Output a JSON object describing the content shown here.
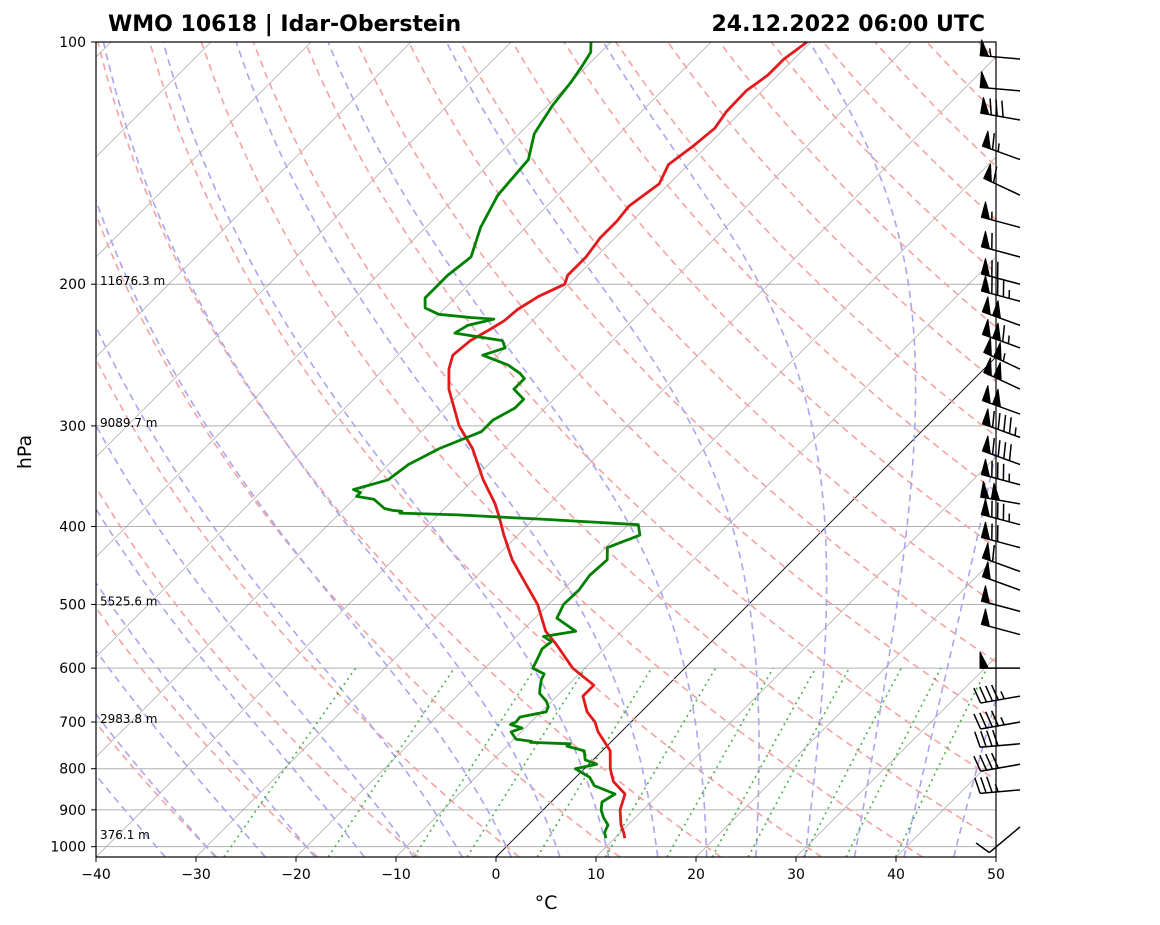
{
  "header": {
    "station": "WMO 10618 | Idar-Oberstein",
    "datetime": "24.12.2022 06:00 UTC"
  },
  "chart_data": {
    "type": "line",
    "title": "WMO 10618 | Idar-Oberstein",
    "subtitle": "24.12.2022 06:00 UTC",
    "xlabel": "°C",
    "ylabel": "hPa",
    "xlim": [
      -40,
      50
    ],
    "ylim": [
      1030,
      100
    ],
    "y_scale": "log",
    "skew": "skew-T log-p",
    "grid": true,
    "x_ticks": [
      "−40",
      "−30",
      "−20",
      "−10",
      "0",
      "10",
      "20",
      "30",
      "40",
      "50"
    ],
    "x_tick_values": [
      -40,
      -30,
      -20,
      -10,
      0,
      10,
      20,
      30,
      40,
      50
    ],
    "y_ticks": [
      "100",
      "200",
      "300",
      "400",
      "500",
      "600",
      "700",
      "800",
      "900",
      "1000"
    ],
    "y_tick_values": [
      100,
      200,
      300,
      400,
      500,
      600,
      700,
      800,
      900,
      1000
    ],
    "height_labels": [
      {
        "p": 200,
        "text": "11676.3 m"
      },
      {
        "p": 300,
        "text": "9089.7 m"
      },
      {
        "p": 500,
        "text": "5525.6 m"
      },
      {
        "p": 700,
        "text": "2983.8 m"
      },
      {
        "p": 976,
        "text": "376.1 m"
      }
    ],
    "colors": {
      "temperature": "#e31a1c",
      "dewpoint": "#008000",
      "dry_adiabat": "#f4a3a3",
      "moist_adiabat": "#a7a7ee",
      "mixing_ratio": "#4caf50",
      "isotherm": "#888888"
    },
    "series": [
      {
        "name": "temperature",
        "p": [
          976,
          960,
          940,
          900,
          860,
          830,
          800,
          760,
          720,
          700,
          680,
          650,
          630,
          600,
          560,
          540,
          500,
          470,
          440,
          410,
          390,
          375,
          365,
          350,
          320,
          300,
          270,
          255,
          245,
          235,
          228,
          222,
          215,
          207,
          200,
          195,
          185,
          175,
          167,
          160,
          150,
          142,
          135,
          128,
          122,
          115,
          110,
          105,
          100
        ],
        "t": [
          11.0,
          10.3,
          9.3,
          7.7,
          6.6,
          4.2,
          2.6,
          0.8,
          -2.3,
          -3.6,
          -5.4,
          -7.4,
          -7.4,
          -11.2,
          -15.3,
          -17.6,
          -21.1,
          -24.5,
          -28.1,
          -31.4,
          -33.6,
          -35.4,
          -36.8,
          -39.0,
          -43.2,
          -46.8,
          -51.5,
          -53.5,
          -54.5,
          -54.2,
          -53.4,
          -52.8,
          -52.6,
          -51.8,
          -50.4,
          -51.0,
          -51.0,
          -51.5,
          -51.5,
          -51.8,
          -51.0,
          -52.0,
          -51.4,
          -51.0,
          -51.5,
          -51.6,
          -51.0,
          -51.0,
          -50.4
        ]
      },
      {
        "name": "dewpoint",
        "p": [
          976,
          960,
          940,
          920,
          900,
          880,
          860,
          840,
          820,
          800,
          790,
          780,
          760,
          750,
          745,
          742,
          740,
          735,
          720,
          712,
          705,
          700,
          690,
          680,
          670,
          660,
          645,
          635,
          620,
          610,
          600,
          580,
          568,
          556,
          548,
          540,
          520,
          500,
          480,
          460,
          440,
          425,
          410,
          398,
          392,
          387,
          385,
          383,
          382,
          380,
          370,
          367,
          363,
          360,
          350,
          335,
          320,
          305,
          295,
          285,
          278,
          270,
          262,
          258,
          252,
          250,
          245,
          240,
          235,
          230,
          225,
          221,
          220,
          218,
          214,
          208,
          202,
          195,
          185,
          170,
          155,
          140,
          130,
          120,
          112,
          107,
          103,
          100
        ],
        "td": [
          9.1,
          8.4,
          8.0,
          6.8,
          5.8,
          5.1,
          5.6,
          2.7,
          1.4,
          -0.9,
          0.8,
          -0.8,
          -1.8,
          -4.0,
          -3.9,
          -8.0,
          -8.0,
          -9.8,
          -11.0,
          -10.3,
          -11.8,
          -11.5,
          -11.6,
          -9.5,
          -9.8,
          -10.5,
          -12.0,
          -12.5,
          -13.2,
          -13.5,
          -15.2,
          -15.8,
          -16.2,
          -16.0,
          -17.3,
          -14.6,
          -17.8,
          -18.5,
          -18.4,
          -18.8,
          -18.6,
          -19.8,
          -17.8,
          -19.0,
          -28.8,
          -38.0,
          -44.0,
          -44.0,
          -45.0,
          -46.0,
          -48.0,
          -50.0,
          -50.0,
          -51.0,
          -48.5,
          -48.0,
          -46.5,
          -44.0,
          -44.0,
          -43.0,
          -43.0,
          -45.0,
          -45.0,
          -46.0,
          -48.0,
          -49.0,
          -51.5,
          -50.0,
          -51.0,
          -56.5,
          -56.0,
          -54.0,
          -56.5,
          -60.0,
          -62.0,
          -63.0,
          -63.0,
          -63.0,
          -62.5,
          -64.5,
          -66.0,
          -66.5,
          -68.5,
          -69.5,
          -70.0,
          -70.5,
          -71.0,
          -72.0
        ]
      }
    ],
    "wind_barbs": {
      "p": [
        105,
        115,
        125,
        140,
        155,
        170,
        185,
        200,
        210,
        225,
        240,
        255,
        270,
        290,
        310,
        335,
        355,
        375,
        398,
        425,
        455,
        480,
        510,
        545,
        600,
        650,
        700,
        745,
        790,
        850,
        945
      ],
      "speed_kt": [
        55,
        50,
        80,
        65,
        60,
        55,
        60,
        70,
        85,
        100,
        115,
        105,
        100,
        100,
        95,
        90,
        85,
        100,
        85,
        70,
        60,
        50,
        50,
        50,
        50,
        45,
        45,
        40,
        40,
        35,
        10
      ],
      "direction_deg": [
        275,
        275,
        280,
        290,
        295,
        285,
        285,
        285,
        285,
        290,
        290,
        295,
        295,
        290,
        290,
        290,
        285,
        280,
        285,
        285,
        290,
        290,
        285,
        285,
        270,
        260,
        260,
        265,
        260,
        265,
        230
      ]
    }
  }
}
